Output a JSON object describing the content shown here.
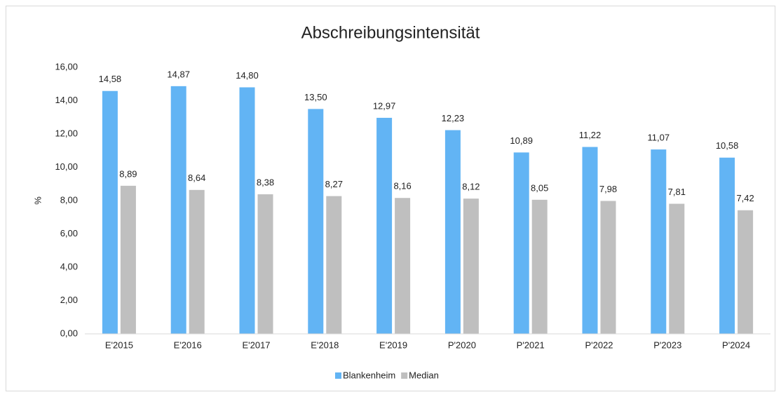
{
  "chart_data": {
    "type": "bar",
    "title": "Abschreibungsintensität",
    "y_label": "%",
    "categories": [
      "E'2015",
      "E'2016",
      "E'2017",
      "E'2018",
      "E'2019",
      "P'2020",
      "P'2021",
      "P'2022",
      "P'2023",
      "P'2024"
    ],
    "series": [
      {
        "name": "Blankenheim",
        "color": "#62b4f4",
        "values": [
          14.58,
          14.87,
          14.8,
          13.5,
          12.97,
          12.23,
          10.89,
          11.22,
          11.07,
          10.58
        ],
        "value_labels": [
          "14,58",
          "14,87",
          "14,80",
          "13,50",
          "12,97",
          "12,23",
          "10,89",
          "11,22",
          "11,07",
          "10,58"
        ]
      },
      {
        "name": "Median",
        "color": "#bfbfbf",
        "values": [
          8.89,
          8.64,
          8.38,
          8.27,
          8.16,
          8.12,
          8.05,
          7.98,
          7.81,
          7.42
        ],
        "value_labels": [
          "8,89",
          "8,64",
          "8,38",
          "8,27",
          "8,16",
          "8,12",
          "8,05",
          "7,98",
          "7,81",
          "7,42"
        ]
      }
    ],
    "ylim": [
      0,
      16
    ],
    "yticks": [
      {
        "value": 0,
        "label": "0,00"
      },
      {
        "value": 2,
        "label": "2,00"
      },
      {
        "value": 4,
        "label": "4,00"
      },
      {
        "value": 6,
        "label": "6,00"
      },
      {
        "value": 8,
        "label": "8,00"
      },
      {
        "value": 10,
        "label": "10,00"
      },
      {
        "value": 12,
        "label": "12,00"
      },
      {
        "value": 14,
        "label": "14,00"
      },
      {
        "value": 16,
        "label": "16,00"
      }
    ],
    "grid": false,
    "legend": "bottom"
  }
}
